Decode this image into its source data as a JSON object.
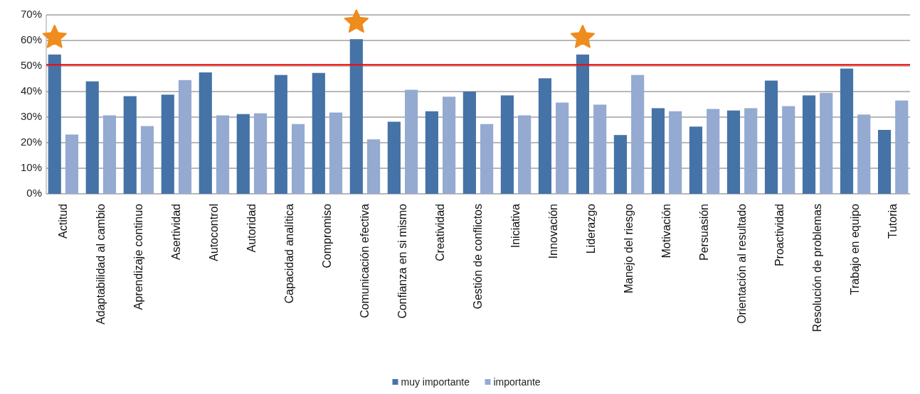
{
  "chart_data": {
    "type": "bar",
    "categories": [
      "Actitud",
      "Adaptabilidad al cambio",
      "Aprendizaje continuo",
      "Asertividad",
      "Autocontrol",
      "Autoridad",
      "Capacidad analítica",
      "Compromiso",
      "Comunicación efectiva",
      "Confianza en si mismo",
      "Creatividad",
      "Gestión de conflictos",
      "Iniciativa",
      "Innovación",
      "Liderazgo",
      "Manejo del riesgo",
      "Motivación",
      "Persuasión",
      "Orientación al resultado",
      "Proactividad",
      "Resolución de problemas",
      "Trabajo en equipo",
      "Tutoria"
    ],
    "series": [
      {
        "name": "muy importante",
        "color": "#4573a7",
        "values": [
          54.5,
          44,
          38.2,
          38.8,
          47.5,
          31.2,
          46.5,
          47.3,
          60.5,
          28.2,
          32.3,
          40,
          38.5,
          45.2,
          54.5,
          23,
          33.5,
          26.3,
          32.6,
          44.3,
          38.5,
          49,
          25
        ]
      },
      {
        "name": "importante",
        "color": "#95aad1",
        "values": [
          23.2,
          30.7,
          26.5,
          44.5,
          30.7,
          31.5,
          27.3,
          31.8,
          21.3,
          40.7,
          38,
          27.3,
          30.7,
          35.7,
          34.9,
          46.5,
          32.3,
          33.2,
          33.5,
          34.3,
          39.5,
          31,
          36.5
        ]
      }
    ],
    "ylim": [
      0,
      70
    ],
    "yticks": [
      {
        "value": 0,
        "label": "0%"
      },
      {
        "value": 10,
        "label": "10%"
      },
      {
        "value": 20,
        "label": "20%"
      },
      {
        "value": 30,
        "label": "30%"
      },
      {
        "value": 40,
        "label": "40%"
      },
      {
        "value": 50,
        "label": "50%"
      },
      {
        "value": 60,
        "label": "60%"
      },
      {
        "value": 70,
        "label": "70%"
      }
    ],
    "grid": "y",
    "legend": "bottom",
    "ref_lines": [
      {
        "axis": "y",
        "value": 50.5,
        "color": "#ff0000"
      }
    ]
  }
}
